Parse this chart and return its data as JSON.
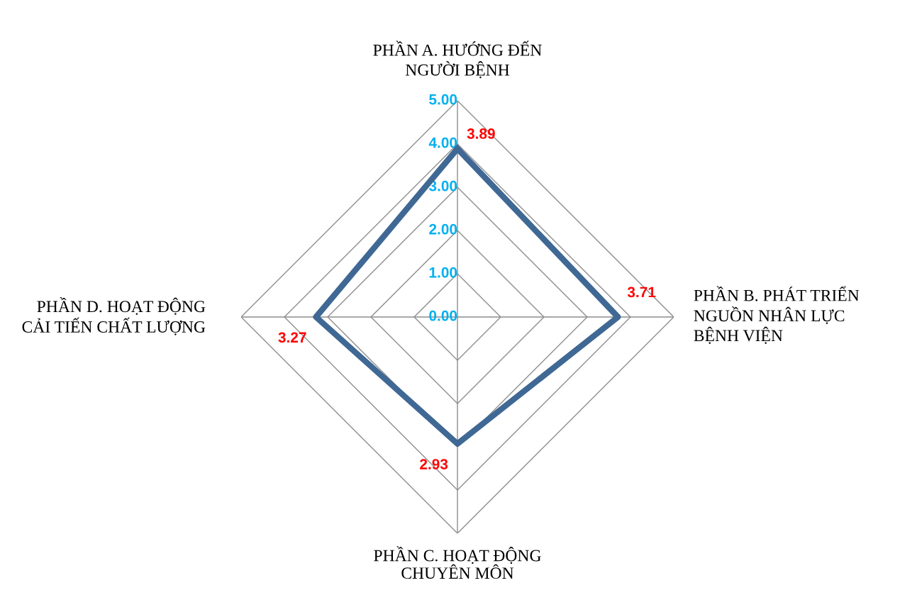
{
  "chart_data": {
    "type": "radar",
    "categories": [
      "PHẦN A. HƯỚNG ĐẾN\nNGƯỜI BỆNH",
      "PHẦN B. PHÁT TRIỂN\nNGUỒN NHÂN LỰC\nBỆNH VIỆN",
      "PHẦN C. HOẠT ĐỘNG\nCHUYÊN MÔN",
      "PHẦN D. HOẠT ĐỘNG\nCẢI TIẾN CHẤT LƯỢNG"
    ],
    "series": [
      {
        "color": "#3f6894",
        "values": [
          3.89,
          3.71,
          2.93,
          3.27
        ]
      }
    ],
    "ylim": [
      0,
      5
    ],
    "yticks": [
      {
        "value": 0,
        "label": "0.00"
      },
      {
        "value": 1,
        "label": "1.00"
      },
      {
        "value": 2,
        "label": "2.00"
      },
      {
        "value": 3,
        "label": "3.00"
      },
      {
        "value": 4,
        "label": "4.00"
      },
      {
        "value": 5,
        "label": "5.00"
      }
    ],
    "grid": true,
    "data_labels": true,
    "marker": "none",
    "line_style": "solid"
  }
}
